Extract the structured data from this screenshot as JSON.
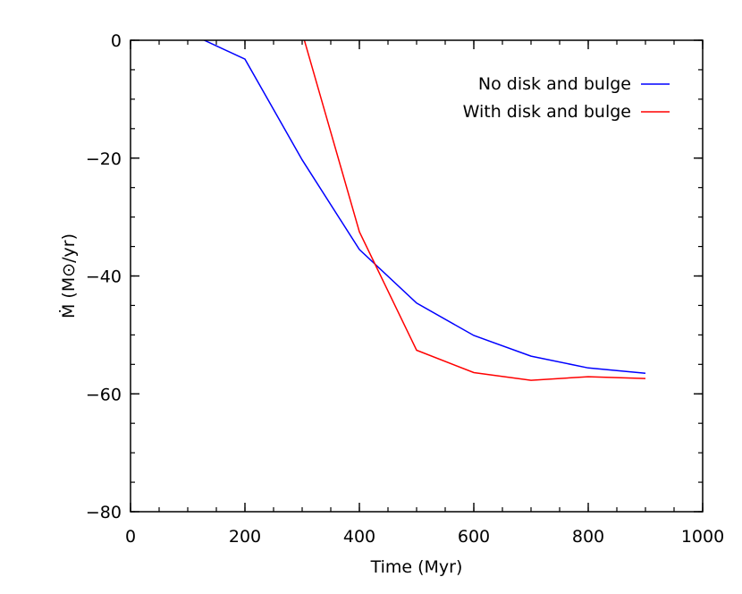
{
  "chart_data": {
    "type": "line",
    "title": "",
    "xlabel": "Time (Myr)",
    "ylabel": "Ṁ (M⊙/yr)",
    "xlim": [
      0,
      1000
    ],
    "ylim": [
      -80,
      0
    ],
    "xticks": [
      0,
      200,
      400,
      600,
      800,
      1000
    ],
    "yticks": [
      0,
      -20,
      -40,
      -60,
      -80
    ],
    "x_minor_step": 50,
    "y_minor_step": 5,
    "grid": false,
    "legend_position": "top-right",
    "series": [
      {
        "name": "No disk and bulge",
        "color": "#0000ff",
        "x": [
          0,
          100,
          200,
          300,
          400,
          500,
          600,
          700,
          800,
          900
        ],
        "y": [
          1.3,
          1.3,
          -3.2,
          -20.3,
          -35.5,
          -44.6,
          -50.1,
          -53.6,
          -55.6,
          -56.5
        ]
      },
      {
        "name": "With disk and bulge",
        "color": "#ff0000",
        "x": [
          0,
          100,
          200,
          300,
          400,
          500,
          600,
          700,
          800,
          900
        ],
        "y": [
          1.3,
          1.3,
          1.3,
          1.3,
          -32.5,
          -52.6,
          -56.4,
          -57.7,
          -57.1,
          -57.4
        ]
      }
    ]
  }
}
